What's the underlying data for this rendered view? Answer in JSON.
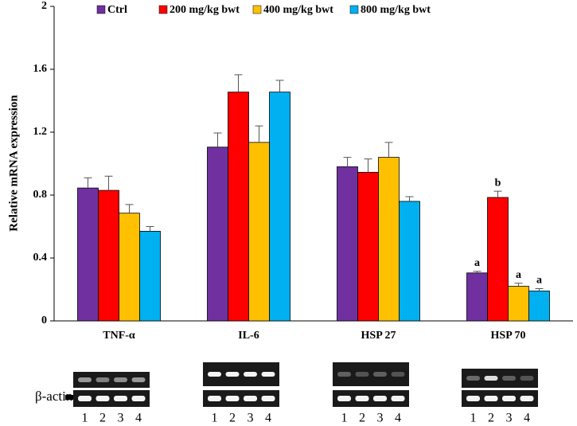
{
  "chart_data": {
    "type": "bar",
    "y_label": "Relative mRNA expression",
    "categories": [
      "TNF-α",
      "IL-6",
      "HSP 27",
      "HSP 70"
    ],
    "series": [
      {
        "name": "Ctrl",
        "color": "#7030a0",
        "values": [
          0.845,
          1.105,
          0.98,
          0.305
        ],
        "errors": [
          0.065,
          0.09,
          0.06,
          0.01
        ],
        "significance": [
          null,
          null,
          null,
          "a"
        ]
      },
      {
        "name": "200 mg/kg bwt",
        "color": "#ff0000",
        "values": [
          0.83,
          1.455,
          0.945,
          0.785
        ],
        "errors": [
          0.09,
          0.11,
          0.085,
          0.04
        ],
        "significance": [
          null,
          null,
          null,
          "b"
        ]
      },
      {
        "name": "400 mg/kg bwt",
        "color": "#ffc000",
        "values": [
          0.685,
          1.135,
          1.04,
          0.22
        ],
        "errors": [
          0.055,
          0.105,
          0.095,
          0.02
        ],
        "significance": [
          null,
          null,
          null,
          "a"
        ]
      },
      {
        "name": "800 mg/kg bwt",
        "color": "#00b0f0",
        "values": [
          0.57,
          1.455,
          0.76,
          0.19
        ],
        "errors": [
          0.03,
          0.075,
          0.03,
          0.015
        ],
        "significance": [
          null,
          null,
          null,
          "a"
        ]
      }
    ],
    "ylim": [
      0,
      2
    ],
    "yticks": [
      0,
      0.4,
      0.8,
      1.2,
      1.6,
      2
    ],
    "grid": false,
    "legend": "top"
  },
  "gel_panel": {
    "label": "β-actin",
    "lane_labels": [
      [
        "1",
        "2",
        "3",
        "4"
      ],
      [
        "1",
        "2",
        "3",
        "4"
      ],
      [
        "1",
        "2",
        "3",
        "4"
      ],
      [
        "1",
        "2",
        "3",
        "4"
      ]
    ]
  }
}
